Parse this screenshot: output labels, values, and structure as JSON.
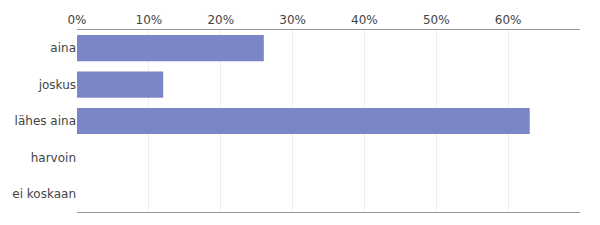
{
  "chart_data": {
    "type": "bar",
    "orientation": "horizontal",
    "categories": [
      "aina",
      "joskus",
      "lähes aina",
      "harvoin",
      "ei koskaan"
    ],
    "values": [
      26,
      12,
      63,
      0,
      0
    ],
    "color": "#7b86c8",
    "xlim": [
      0,
      70
    ],
    "xticks": [
      {
        "value": 0,
        "label": "0%"
      },
      {
        "value": 10,
        "label": "10%"
      },
      {
        "value": 20,
        "label": "20%"
      },
      {
        "value": 30,
        "label": "30%"
      },
      {
        "value": 40,
        "label": "40%"
      },
      {
        "value": 50,
        "label": "50%"
      },
      {
        "value": 60,
        "label": "60%"
      }
    ],
    "grid": true
  }
}
